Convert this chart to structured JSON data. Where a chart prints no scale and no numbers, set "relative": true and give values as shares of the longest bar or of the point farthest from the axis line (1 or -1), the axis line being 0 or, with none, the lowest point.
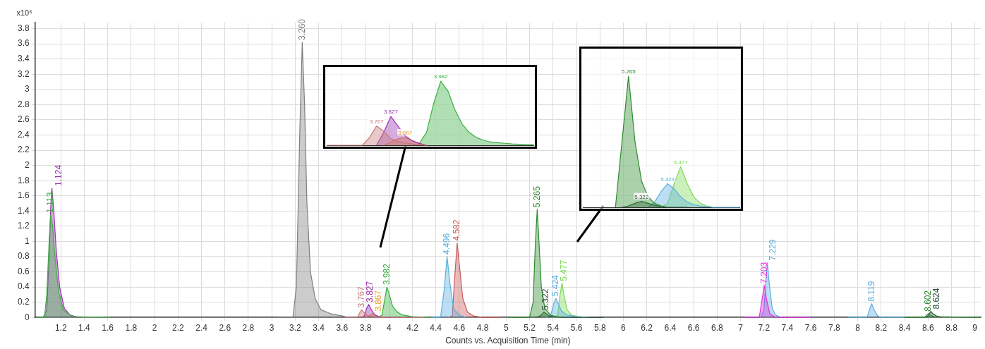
{
  "chart_data": [
    {
      "type": "area",
      "xlabel": "Counts vs. Acquisition Time (min)",
      "ylabel": "x10⁶",
      "xlim": [
        0.98,
        9.05
      ],
      "ylim": [
        0,
        3.88
      ],
      "grid": true,
      "xticks": [
        1.2,
        1.4,
        1.6,
        1.8,
        2,
        2.2,
        2.4,
        2.6,
        2.8,
        3,
        3.2,
        3.4,
        3.6,
        3.8,
        4,
        4.2,
        4.4,
        4.6,
        4.8,
        5,
        5.2,
        5.4,
        5.6,
        5.8,
        6,
        6.2,
        6.4,
        6.6,
        6.8,
        7,
        7.2,
        7.4,
        7.6,
        7.8,
        8,
        8.2,
        8.4,
        8.6,
        8.8,
        9
      ],
      "yticks": [
        0,
        0.2,
        0.4,
        0.6,
        0.8,
        1,
        1.2,
        1.4,
        1.6,
        1.8,
        2,
        2.2,
        2.4,
        2.6,
        2.8,
        3,
        3.2,
        3.4,
        3.6,
        3.8
      ],
      "series": [
        {
          "color": "#3cb043",
          "x": [
            1.0,
            1.06,
            1.08,
            1.1,
            1.113,
            1.13,
            1.15,
            1.18,
            1.22,
            1.3,
            1.62
          ],
          "values": [
            0,
            0,
            0.3,
            1.0,
            1.35,
            1.2,
            0.8,
            0.35,
            0.1,
            0.01,
            0
          ]
        },
        {
          "color": "#9b30b0",
          "x": [
            1.05,
            1.08,
            1.1,
            1.115,
            1.124,
            1.14,
            1.16,
            1.19,
            1.23,
            1.28,
            1.35
          ],
          "values": [
            0,
            0.1,
            0.8,
            1.5,
            1.7,
            1.4,
            0.9,
            0.4,
            0.12,
            0.03,
            0
          ]
        },
        {
          "color": "#7f7f7f",
          "x": [
            3.05,
            3.18,
            3.21,
            3.24,
            3.26,
            3.28,
            3.3,
            3.33,
            3.37,
            3.42,
            3.5,
            3.6,
            3.65
          ],
          "values": [
            0,
            0,
            0.4,
            2.5,
            3.62,
            2.8,
            1.5,
            0.6,
            0.25,
            0.1,
            0.05,
            0.02,
            0
          ]
        },
        {
          "color": "#c87878",
          "x": [
            3.62,
            3.73,
            3.75,
            3.767,
            3.79,
            3.82,
            3.88,
            4.0,
            4.3
          ],
          "values": [
            0,
            0,
            0.06,
            0.1,
            0.06,
            0.02,
            0.01,
            0,
            0
          ]
        },
        {
          "color": "#9b30b0",
          "x": [
            3.76,
            3.79,
            3.81,
            3.827,
            3.85,
            3.88,
            3.92,
            4.0
          ],
          "values": [
            0,
            0.02,
            0.12,
            0.17,
            0.1,
            0.03,
            0.01,
            0
          ]
        },
        {
          "color": "#f0a030",
          "x": [
            3.8,
            3.84,
            3.867,
            3.9,
            3.95
          ],
          "values": [
            0,
            0.03,
            0.05,
            0.02,
            0
          ]
        },
        {
          "color": "#3cb043",
          "x": [
            3.9,
            3.94,
            3.96,
            3.982,
            4.0,
            4.03,
            4.07,
            4.12,
            4.2,
            4.34
          ],
          "values": [
            0,
            0.03,
            0.2,
            0.4,
            0.32,
            0.15,
            0.07,
            0.03,
            0.01,
            0
          ]
        },
        {
          "color": "#5aaee0",
          "x": [
            4.36,
            4.44,
            4.47,
            4.496,
            4.52,
            4.55,
            4.6,
            4.66
          ],
          "values": [
            0,
            0,
            0.35,
            0.8,
            0.45,
            0.12,
            0.03,
            0
          ]
        },
        {
          "color": "#c85a5a",
          "x": [
            4.5,
            4.54,
            4.56,
            4.582,
            4.6,
            4.63,
            4.67,
            4.72,
            4.8,
            4.95
          ],
          "values": [
            0,
            0.02,
            0.5,
            0.98,
            0.7,
            0.25,
            0.07,
            0.02,
            0,
            0
          ]
        },
        {
          "color": "#2e8b2e",
          "x": [
            5.02,
            5.2,
            5.23,
            5.25,
            5.265,
            5.28,
            5.3,
            5.33,
            5.38,
            5.45
          ],
          "values": [
            0,
            0,
            0.2,
            1.0,
            1.42,
            1.0,
            0.4,
            0.12,
            0.03,
            0
          ]
        },
        {
          "color": "#2f4f3f",
          "x": [
            5.25,
            5.29,
            5.31,
            5.322,
            5.34,
            5.37,
            5.42,
            5.5,
            5.83
          ],
          "values": [
            0,
            0.02,
            0.05,
            0.07,
            0.05,
            0.02,
            0.01,
            0,
            0
          ]
        },
        {
          "color": "#5aaee0",
          "x": [
            5.34,
            5.38,
            5.41,
            5.424,
            5.44,
            5.47,
            5.52,
            5.6,
            5.7
          ],
          "values": [
            0,
            0.03,
            0.2,
            0.25,
            0.2,
            0.09,
            0.03,
            0.01,
            0
          ]
        },
        {
          "color": "#7ed957",
          "x": [
            5.4,
            5.44,
            5.46,
            5.477,
            5.49,
            5.52,
            5.56,
            5.62,
            5.7
          ],
          "values": [
            0,
            0.03,
            0.3,
            0.45,
            0.32,
            0.1,
            0.03,
            0.01,
            0
          ]
        },
        {
          "color": "#e030e0",
          "x": [
            7.03,
            7.16,
            7.18,
            7.203,
            7.22,
            7.25,
            7.3,
            7.6
          ],
          "values": [
            0,
            0,
            0.2,
            0.42,
            0.25,
            0.05,
            0,
            0
          ]
        },
        {
          "color": "#5aaee0",
          "x": [
            7.17,
            7.2,
            7.215,
            7.229,
            7.245,
            7.27,
            7.3,
            7.35
          ],
          "values": [
            0,
            0.1,
            0.45,
            0.72,
            0.45,
            0.12,
            0.03,
            0
          ]
        },
        {
          "color": "#5aaee0",
          "x": [
            7.92,
            8.08,
            8.1,
            8.119,
            8.14,
            8.17,
            8.2,
            8.4
          ],
          "values": [
            0,
            0,
            0.1,
            0.18,
            0.1,
            0.02,
            0,
            0
          ]
        },
        {
          "color": "#2e8b2e",
          "x": [
            8.4,
            8.57,
            8.59,
            8.602,
            8.62,
            8.65,
            9.05
          ],
          "values": [
            0,
            0,
            0.03,
            0.05,
            0.03,
            0.01,
            0
          ]
        },
        {
          "color": "#2f4f3f",
          "x": [
            8.58,
            8.6,
            8.612,
            8.624,
            8.64,
            8.67,
            8.72
          ],
          "values": [
            0,
            0.02,
            0.05,
            0.08,
            0.05,
            0.02,
            0
          ]
        }
      ],
      "annotations": [
        {
          "text": "1.113",
          "x": 1.113,
          "y": 1.35
        },
        {
          "text": "1.124",
          "x": 1.124,
          "y": 1.7
        },
        {
          "text": "3.260",
          "x": 3.26,
          "y": 3.62
        },
        {
          "text": "3.767",
          "x": 3.767,
          "y": 0.1
        },
        {
          "text": "3.827",
          "x": 3.827,
          "y": 0.17
        },
        {
          "text": "3.867",
          "x": 3.867,
          "y": 0.05
        },
        {
          "text": "3.982",
          "x": 3.982,
          "y": 0.4
        },
        {
          "text": "4.496",
          "x": 4.496,
          "y": 0.8
        },
        {
          "text": "4.582",
          "x": 4.582,
          "y": 0.98
        },
        {
          "text": "5.265",
          "x": 5.265,
          "y": 1.42
        },
        {
          "text": "5.322",
          "x": 5.322,
          "y": 0.07
        },
        {
          "text": "5.424",
          "x": 5.424,
          "y": 0.25
        },
        {
          "text": "5.477",
          "x": 5.477,
          "y": 0.45
        },
        {
          "text": "7.203",
          "x": 7.203,
          "y": 0.42
        },
        {
          "text": "7.229",
          "x": 7.229,
          "y": 0.72
        },
        {
          "text": "8.119",
          "x": 8.119,
          "y": 0.18
        },
        {
          "text": "8.602",
          "x": 8.602,
          "y": 0.05
        },
        {
          "text": "8.624",
          "x": 8.624,
          "y": 0.08
        }
      ]
    },
    {
      "type": "area",
      "relative": true,
      "tick_labels": false,
      "categories": [
        null,
        null,
        null,
        null,
        null,
        null,
        null,
        null,
        null,
        null,
        null,
        null,
        null,
        null,
        null,
        null,
        null,
        null,
        null,
        null,
        null,
        null,
        null,
        null,
        null,
        null,
        null,
        null,
        null,
        null
      ],
      "series": [
        {
          "color": "#c87878",
          "values": [
            0,
            0,
            0,
            0,
            0,
            0,
            0.12,
            0.3,
            0.22,
            0.1,
            0.06,
            0.04,
            0.02,
            0.01,
            0,
            null,
            null,
            null,
            null,
            null,
            null,
            null,
            null,
            null,
            null,
            null,
            null,
            null,
            null,
            null
          ]
        },
        {
          "color": "#9b30b0",
          "values": [
            null,
            null,
            null,
            null,
            null,
            null,
            null,
            0,
            0.2,
            0.45,
            0.3,
            0.15,
            0.07,
            0.03,
            0,
            null,
            null,
            null,
            null,
            null,
            null,
            null,
            null,
            null,
            null,
            null,
            null,
            null,
            null,
            null
          ]
        },
        {
          "color": "#f0a030",
          "values": [
            null,
            null,
            null,
            null,
            null,
            null,
            null,
            null,
            0,
            0.05,
            0.1,
            0.12,
            0.07,
            0.03,
            0,
            null,
            null,
            null,
            null,
            null,
            null,
            null,
            null,
            null,
            null,
            null,
            null,
            null,
            null,
            null
          ]
        },
        {
          "color": "#3cb043",
          "values": [
            null,
            null,
            null,
            null,
            null,
            null,
            null,
            null,
            null,
            null,
            null,
            null,
            0,
            0.03,
            0.2,
            0.65,
            1,
            0.85,
            0.55,
            0.33,
            0.2,
            0.12,
            0.08,
            0.05,
            0.04,
            0.03,
            0.02,
            0.015,
            0.01,
            0.01
          ]
        }
      ],
      "annotations": [
        "3.767",
        "3.827",
        "3.867",
        "3.982"
      ]
    },
    {
      "type": "area",
      "relative": true,
      "tick_labels": false,
      "categories": [
        null,
        null,
        null,
        null,
        null,
        null,
        null,
        null,
        null,
        null,
        null,
        null,
        null,
        null,
        null,
        null,
        null,
        null,
        null,
        null,
        null,
        null,
        null,
        null,
        null
      ],
      "series": [
        {
          "color": "#2e8b2e",
          "values": [
            null,
            null,
            null,
            null,
            null,
            0,
            0.5,
            1,
            0.5,
            0.2,
            0.08,
            0.03,
            0.01,
            0,
            null,
            null,
            null,
            null,
            null,
            null,
            null,
            null,
            null,
            null,
            null
          ]
        },
        {
          "color": "#2f4f3f",
          "values": [
            null,
            null,
            null,
            null,
            null,
            null,
            0,
            0.01,
            0.03,
            0.045,
            0.03,
            0.015,
            0.005,
            0,
            0,
            0,
            0,
            null,
            null,
            null,
            null,
            null,
            null,
            null,
            null
          ]
        },
        {
          "color": "#5aaee0",
          "values": [
            null,
            null,
            null,
            null,
            null,
            null,
            null,
            null,
            null,
            null,
            0,
            0.04,
            0.12,
            0.18,
            0.14,
            0.08,
            0.04,
            0.02,
            0.01,
            0.005,
            0,
            0,
            0,
            0,
            0
          ]
        },
        {
          "color": "#7ed957",
          "values": [
            null,
            null,
            null,
            null,
            null,
            null,
            null,
            null,
            null,
            null,
            null,
            null,
            0,
            0.03,
            0.18,
            0.31,
            0.18,
            0.08,
            0.03,
            0.01,
            0,
            null,
            null,
            null,
            null
          ]
        }
      ],
      "annotations": [
        "5.265",
        "5.322",
        "5.424",
        "5.477"
      ]
    }
  ]
}
